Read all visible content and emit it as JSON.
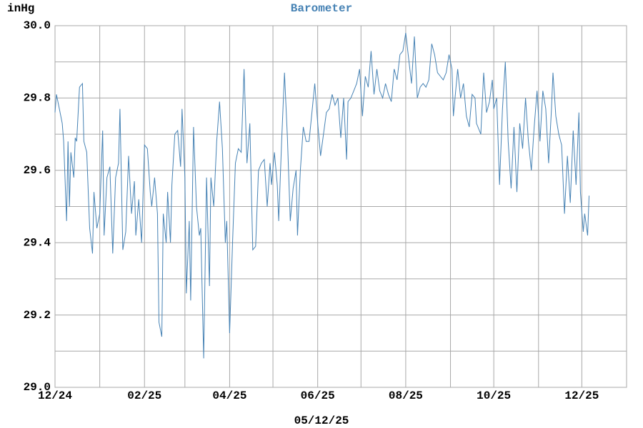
{
  "chart_data": {
    "type": "line",
    "title": "Barometer",
    "ylabel": "inHg",
    "xlabel": "05/12/25",
    "x": [
      0,
      1,
      3,
      5,
      6,
      8,
      9,
      10,
      11,
      13,
      14,
      15,
      17,
      19,
      20,
      22,
      24,
      26,
      27,
      29,
      31,
      33,
      34,
      36,
      38,
      40,
      42,
      44,
      45,
      47,
      49,
      51,
      53,
      55,
      56,
      58,
      60,
      62,
      64,
      66,
      67,
      69,
      71,
      72,
      74,
      75,
      77,
      78,
      80,
      81,
      83,
      85,
      87,
      88,
      90,
      91,
      93,
      94,
      96,
      98,
      100,
      101,
      103,
      105,
      107,
      108,
      110,
      112,
      114,
      116,
      118,
      119,
      121,
      123,
      125,
      127,
      129,
      131,
      133,
      135,
      137,
      139,
      141,
      143,
      145,
      147,
      149,
      150,
      152,
      154,
      155,
      157,
      159,
      161,
      163,
      165,
      167,
      168,
      170,
      172,
      174,
      176,
      178,
      180,
      182,
      184,
      186,
      188,
      190,
      192,
      194,
      196,
      198,
      200,
      202,
      203,
      205,
      207,
      209,
      211,
      213,
      215,
      217,
      219,
      221,
      223,
      225,
      227,
      229,
      231,
      233,
      235,
      237,
      239,
      241,
      243,
      245,
      247,
      249,
      251,
      253,
      255,
      257,
      259,
      261,
      263,
      265,
      267,
      269,
      271,
      273,
      275,
      276,
      279,
      281,
      283,
      285,
      287,
      289,
      291,
      292,
      295,
      297,
      299,
      301,
      303,
      304,
      306,
      308,
      310,
      312,
      314,
      316,
      318,
      320,
      322,
      324,
      326,
      328,
      330,
      332,
      334,
      336,
      338,
      340,
      342,
      344,
      345,
      347,
      349,
      351,
      353,
      355,
      357,
      359,
      361,
      363,
      364,
      366,
      367,
      369,
      370
    ],
    "series": [
      {
        "name": "Barometer",
        "color": "#4682b4",
        "values": [
          29.76,
          29.81,
          29.77,
          29.73,
          29.68,
          29.46,
          29.68,
          29.5,
          29.65,
          29.58,
          29.69,
          29.68,
          29.83,
          29.84,
          29.68,
          29.65,
          29.44,
          29.37,
          29.54,
          29.44,
          29.48,
          29.71,
          29.42,
          29.58,
          29.61,
          29.37,
          29.58,
          29.62,
          29.77,
          29.38,
          29.43,
          29.64,
          29.48,
          29.57,
          29.42,
          29.52,
          29.4,
          29.67,
          29.66,
          29.54,
          29.5,
          29.58,
          29.48,
          29.18,
          29.14,
          29.48,
          29.4,
          29.54,
          29.4,
          29.56,
          29.7,
          29.71,
          29.61,
          29.77,
          29.58,
          29.26,
          29.46,
          29.24,
          29.72,
          29.5,
          29.42,
          29.44,
          29.08,
          29.58,
          29.28,
          29.58,
          29.5,
          29.68,
          29.79,
          29.66,
          29.4,
          29.46,
          29.15,
          29.4,
          29.62,
          29.66,
          29.65,
          29.88,
          29.62,
          29.73,
          29.38,
          29.39,
          29.6,
          29.62,
          29.63,
          29.5,
          29.62,
          29.56,
          29.65,
          29.56,
          29.46,
          29.68,
          29.87,
          29.69,
          29.46,
          29.55,
          29.6,
          29.42,
          29.6,
          29.72,
          29.68,
          29.68,
          29.76,
          29.84,
          29.73,
          29.64,
          29.7,
          29.76,
          29.77,
          29.81,
          29.78,
          29.8,
          29.69,
          29.8,
          29.63,
          29.79,
          29.8,
          29.82,
          29.84,
          29.88,
          29.75,
          29.86,
          29.83,
          29.93,
          29.81,
          29.88,
          29.82,
          29.8,
          29.84,
          29.81,
          29.79,
          29.88,
          29.85,
          29.92,
          29.93,
          29.98,
          29.91,
          29.84,
          29.97,
          29.8,
          29.83,
          29.84,
          29.83,
          29.85,
          29.95,
          29.92,
          29.87,
          29.86,
          29.85,
          29.87,
          29.92,
          29.88,
          29.75,
          29.88,
          29.8,
          29.84,
          29.75,
          29.72,
          29.81,
          29.8,
          29.73,
          29.7,
          29.87,
          29.76,
          29.79,
          29.85,
          29.77,
          29.8,
          29.56,
          29.77,
          29.9,
          29.68,
          29.55,
          29.72,
          29.54,
          29.73,
          29.66,
          29.8,
          29.68,
          29.6,
          29.72,
          29.82,
          29.68,
          29.82,
          29.77,
          29.62,
          29.77,
          29.87,
          29.75,
          29.7,
          29.67,
          29.48,
          29.64,
          29.51,
          29.71,
          29.56,
          29.76,
          29.54,
          29.43,
          29.48,
          29.42,
          29.53
        ]
      }
    ],
    "xlim": [
      0,
      396
    ],
    "xticks": [
      {
        "value": 0,
        "label": "12/24"
      },
      {
        "value": 62,
        "label": "02/25"
      },
      {
        "value": 121,
        "label": "04/25"
      },
      {
        "value": 182,
        "label": "06/25"
      },
      {
        "value": 243,
        "label": "08/25"
      },
      {
        "value": 304,
        "label": "10/25"
      },
      {
        "value": 365,
        "label": "12/25"
      }
    ],
    "xminor": [
      31,
      90,
      151,
      212,
      274,
      335
    ],
    "ylim": [
      29.0,
      30.0
    ],
    "yticks": [
      {
        "value": 29,
        "label": "29.0"
      },
      29.2,
      29.4,
      29.6,
      29.8,
      {
        "value": 30,
        "label": "30.0"
      }
    ],
    "yminor": [
      29.1,
      29.3,
      29.5,
      29.7,
      29.9
    ],
    "grid": true,
    "grid_color": "#a8a8a8",
    "title_color": "#4682b4"
  }
}
